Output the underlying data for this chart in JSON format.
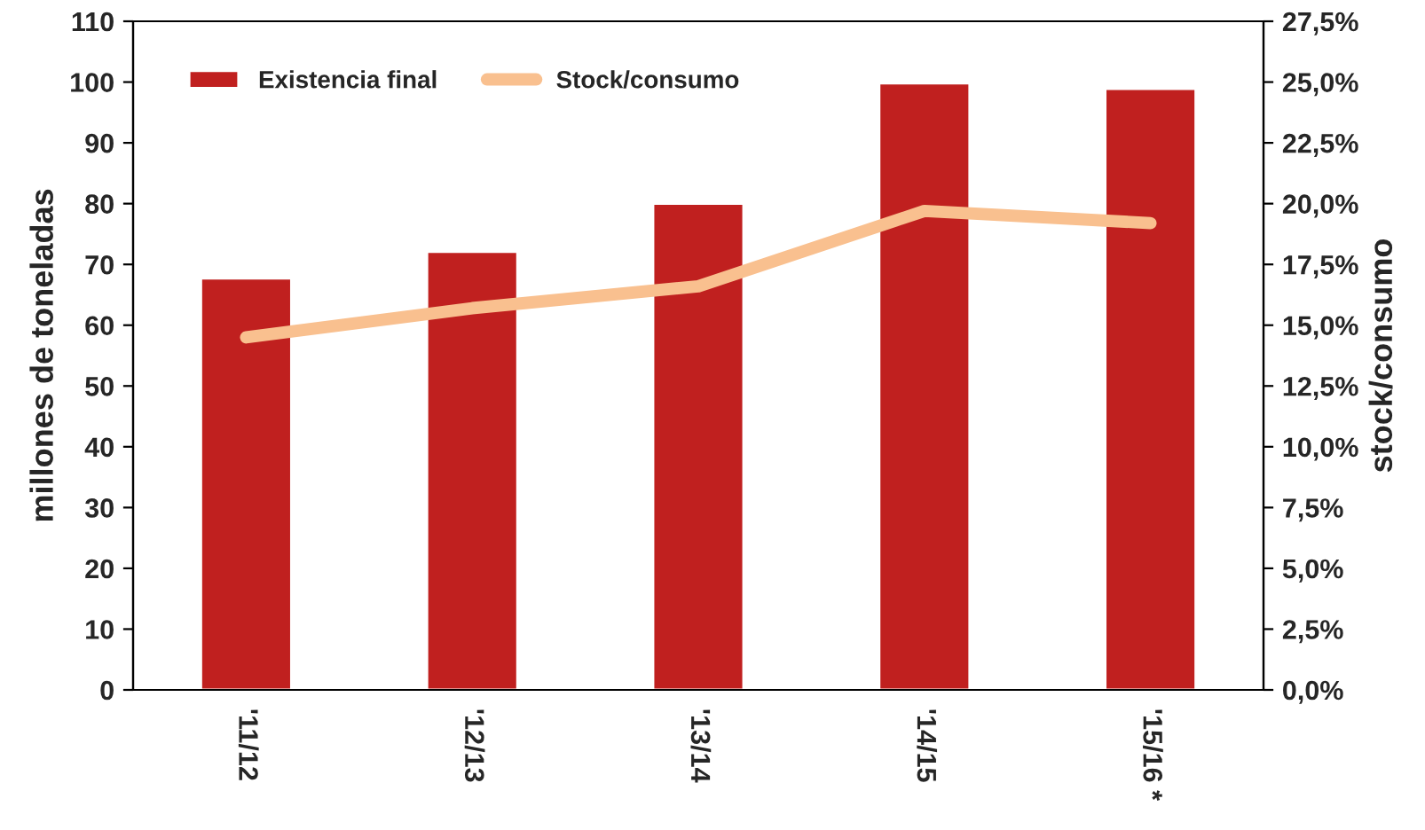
{
  "chart_data": {
    "type": "bar",
    "categories": [
      "'11/12",
      "'12/13",
      "'13/14",
      "'14/15",
      "'15/16 *"
    ],
    "ylabel": "millones de toneladas",
    "y2label": "stock/consumo",
    "ylim": [
      0,
      110
    ],
    "yticks": [
      0,
      10,
      20,
      30,
      40,
      50,
      60,
      70,
      80,
      90,
      100,
      110
    ],
    "y2lim": [
      0,
      27.5
    ],
    "y2ticks": [
      {
        "value": 0,
        "label": "0,0%"
      },
      {
        "value": 2.5,
        "label": "2,5%"
      },
      {
        "value": 5,
        "label": "5,0%"
      },
      {
        "value": 7.5,
        "label": "7,5%"
      },
      {
        "value": 10,
        "label": "10,0%"
      },
      {
        "value": 12.5,
        "label": "12,5%"
      },
      {
        "value": 15,
        "label": "15,0%"
      },
      {
        "value": 17.5,
        "label": "17,5%"
      },
      {
        "value": 20,
        "label": "20,0%"
      },
      {
        "value": 22.5,
        "label": "22,5%"
      },
      {
        "value": 25,
        "label": "25,0%"
      },
      {
        "value": 27.5,
        "label": "27,5%"
      }
    ],
    "series": [
      {
        "name": "Existencia final",
        "color": "#c0201f",
        "values": [
          67.7,
          72.1,
          80,
          99.8,
          98.9
        ]
      },
      {
        "name": "Stock/consumo",
        "type": "line",
        "axis": "y2",
        "color": "#f9c08f",
        "values": [
          14.5,
          15.7,
          16.6,
          19.7,
          19.2
        ]
      }
    ],
    "legend": "top left",
    "grid": false
  }
}
